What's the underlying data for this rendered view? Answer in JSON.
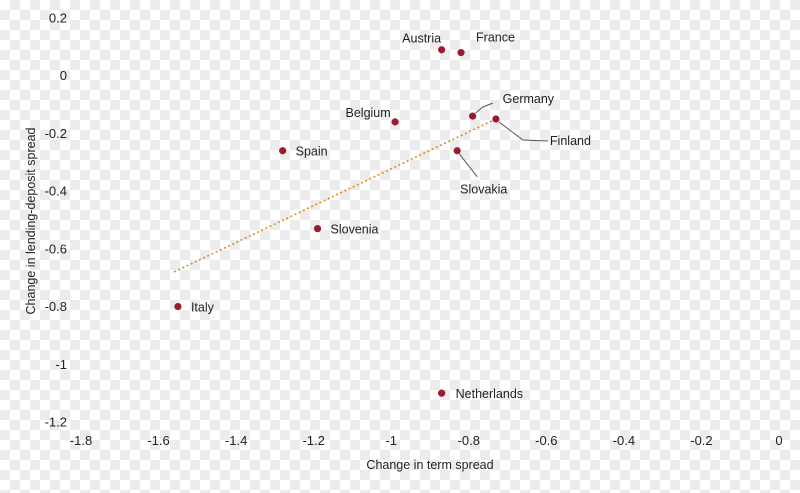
{
  "chart_data": {
    "type": "scatter",
    "title": "",
    "xlabel": "Change in term spread",
    "ylabel": "Change in lending-deposit spread",
    "xlim": [
      -1.8,
      0
    ],
    "ylim": [
      -1.2,
      0.2
    ],
    "x_ticks": [
      -1.8,
      -1.6,
      -1.4,
      -1.2,
      -1,
      -0.8,
      -0.6,
      -0.4,
      -0.2,
      0
    ],
    "y_ticks": [
      0.2,
      0,
      -0.2,
      -0.4,
      -0.6,
      -0.8,
      -1,
      -1.2
    ],
    "grid": false,
    "legend": "none",
    "point_color": "#9b1c31",
    "trendline_color": "#e08a1e",
    "points": [
      {
        "name": "Austria",
        "x": -0.87,
        "y": 0.09
      },
      {
        "name": "France",
        "x": -0.82,
        "y": 0.08
      },
      {
        "name": "Belgium",
        "x": -0.99,
        "y": -0.16
      },
      {
        "name": "Germany",
        "x": -0.79,
        "y": -0.14
      },
      {
        "name": "Finland",
        "x": -0.73,
        "y": -0.15
      },
      {
        "name": "Spain",
        "x": -1.28,
        "y": -0.26
      },
      {
        "name": "Slovakia",
        "x": -0.83,
        "y": -0.26
      },
      {
        "name": "Slovenia",
        "x": -1.19,
        "y": -0.53
      },
      {
        "name": "Italy",
        "x": -1.55,
        "y": -0.8
      },
      {
        "name": "Netherlands",
        "x": -0.87,
        "y": -1.1
      }
    ],
    "trendline": {
      "x": [
        -1.56,
        -0.73
      ],
      "y": [
        -0.68,
        -0.15
      ]
    }
  }
}
